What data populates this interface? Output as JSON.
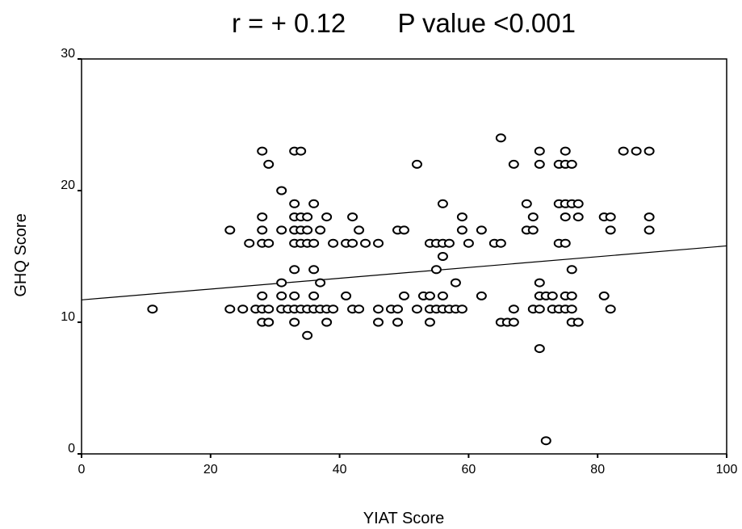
{
  "chart_data": {
    "type": "scatter",
    "title": "r = + 0.12       P value <0.001",
    "xlabel": "YIAT Score",
    "ylabel": "GHQ Score",
    "xlim": [
      0,
      100
    ],
    "ylim": [
      0,
      30
    ],
    "xticks": [
      "0",
      "20",
      "40",
      "60",
      "80",
      "100"
    ],
    "yticks": [
      "0",
      "10",
      "20",
      "30"
    ],
    "grid": false,
    "fit_line": {
      "intercept": 11.7,
      "slope": 0.041
    },
    "points": [
      [
        11,
        11
      ],
      [
        23,
        17
      ],
      [
        23,
        11
      ],
      [
        25,
        11
      ],
      [
        26,
        16
      ],
      [
        27,
        11
      ],
      [
        28,
        23
      ],
      [
        28,
        18
      ],
      [
        28,
        17
      ],
      [
        28,
        16
      ],
      [
        28,
        12
      ],
      [
        28,
        11
      ],
      [
        28,
        10
      ],
      [
        29,
        22
      ],
      [
        29,
        16
      ],
      [
        29,
        11
      ],
      [
        29,
        10
      ],
      [
        31,
        20
      ],
      [
        31,
        17
      ],
      [
        31,
        13
      ],
      [
        31,
        12
      ],
      [
        31,
        11
      ],
      [
        32,
        11
      ],
      [
        33,
        23
      ],
      [
        33,
        19
      ],
      [
        33,
        18
      ],
      [
        33,
        17
      ],
      [
        33,
        16
      ],
      [
        33,
        14
      ],
      [
        33,
        12
      ],
      [
        33,
        11
      ],
      [
        33,
        10
      ],
      [
        34,
        23
      ],
      [
        34,
        18
      ],
      [
        34,
        17
      ],
      [
        34,
        16
      ],
      [
        34,
        11
      ],
      [
        35,
        18
      ],
      [
        35,
        17
      ],
      [
        35,
        16
      ],
      [
        35,
        11
      ],
      [
        35,
        9
      ],
      [
        36,
        19
      ],
      [
        36,
        16
      ],
      [
        36,
        14
      ],
      [
        36,
        12
      ],
      [
        36,
        11
      ],
      [
        37,
        17
      ],
      [
        37,
        13
      ],
      [
        37,
        11
      ],
      [
        38,
        18
      ],
      [
        38,
        11
      ],
      [
        38,
        10
      ],
      [
        39,
        16
      ],
      [
        39,
        11
      ],
      [
        41,
        16
      ],
      [
        41,
        12
      ],
      [
        42,
        18
      ],
      [
        42,
        16
      ],
      [
        42,
        11
      ],
      [
        43,
        17
      ],
      [
        43,
        11
      ],
      [
        44,
        16
      ],
      [
        46,
        16
      ],
      [
        46,
        11
      ],
      [
        46,
        10
      ],
      [
        48,
        11
      ],
      [
        49,
        17
      ],
      [
        49,
        11
      ],
      [
        49,
        10
      ],
      [
        50,
        17
      ],
      [
        50,
        12
      ],
      [
        52,
        22
      ],
      [
        52,
        11
      ],
      [
        53,
        12
      ],
      [
        54,
        16
      ],
      [
        54,
        12
      ],
      [
        54,
        11
      ],
      [
        54,
        10
      ],
      [
        55,
        16
      ],
      [
        55,
        14
      ],
      [
        55,
        11
      ],
      [
        56,
        19
      ],
      [
        56,
        16
      ],
      [
        56,
        15
      ],
      [
        56,
        12
      ],
      [
        56,
        11
      ],
      [
        57,
        16
      ],
      [
        57,
        11
      ],
      [
        58,
        13
      ],
      [
        58,
        11
      ],
      [
        59,
        18
      ],
      [
        59,
        17
      ],
      [
        59,
        11
      ],
      [
        60,
        16
      ],
      [
        62,
        17
      ],
      [
        62,
        12
      ],
      [
        64,
        16
      ],
      [
        65,
        24
      ],
      [
        65,
        16
      ],
      [
        65,
        10
      ],
      [
        66,
        10
      ],
      [
        67,
        22
      ],
      [
        67,
        11
      ],
      [
        67,
        10
      ],
      [
        69,
        19
      ],
      [
        69,
        17
      ],
      [
        70,
        18
      ],
      [
        70,
        17
      ],
      [
        70,
        11
      ],
      [
        71,
        23
      ],
      [
        71,
        22
      ],
      [
        71,
        13
      ],
      [
        71,
        12
      ],
      [
        71,
        11
      ],
      [
        71,
        8
      ],
      [
        72,
        12
      ],
      [
        72,
        1
      ],
      [
        73,
        12
      ],
      [
        73,
        11
      ],
      [
        74,
        22
      ],
      [
        74,
        19
      ],
      [
        74,
        16
      ],
      [
        74,
        11
      ],
      [
        75,
        23
      ],
      [
        75,
        22
      ],
      [
        75,
        19
      ],
      [
        75,
        18
      ],
      [
        75,
        16
      ],
      [
        75,
        12
      ],
      [
        75,
        11
      ],
      [
        76,
        22
      ],
      [
        76,
        19
      ],
      [
        76,
        14
      ],
      [
        76,
        12
      ],
      [
        76,
        11
      ],
      [
        76,
        10
      ],
      [
        77,
        19
      ],
      [
        77,
        18
      ],
      [
        77,
        10
      ],
      [
        81,
        18
      ],
      [
        81,
        12
      ],
      [
        82,
        18
      ],
      [
        82,
        17
      ],
      [
        82,
        11
      ],
      [
        84,
        23
      ],
      [
        86,
        23
      ],
      [
        88,
        23
      ],
      [
        88,
        18
      ],
      [
        88,
        17
      ]
    ]
  }
}
